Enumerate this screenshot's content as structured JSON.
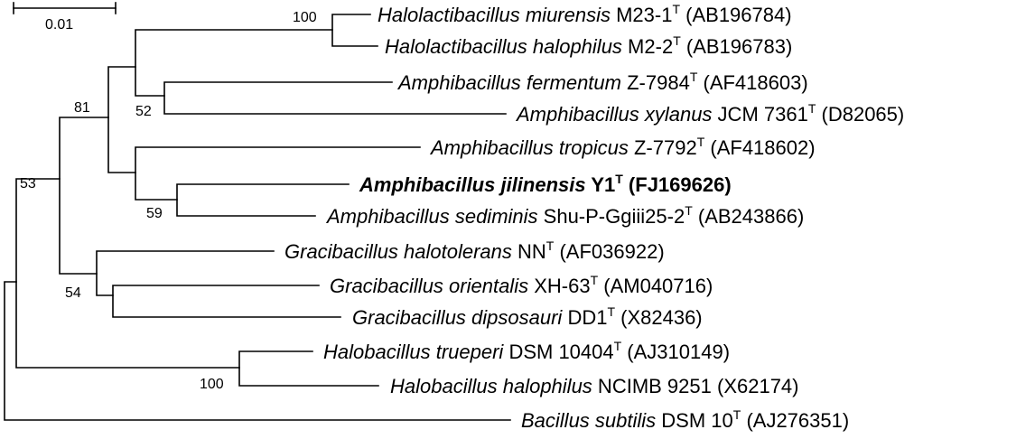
{
  "scale_bar": {
    "label": "0.01"
  },
  "taxa": [
    {
      "id": "t1",
      "genus_species": "Halolactibacillus miurensis",
      "strain": "M23-1",
      "type_strain": true,
      "accession": "(AB196784)",
      "bold": false
    },
    {
      "id": "t2",
      "genus_species": "Halolactibacillus halophilus",
      "strain": "M2-2",
      "type_strain": true,
      "accession": "(AB196783)",
      "bold": false
    },
    {
      "id": "t3",
      "genus_species": "Amphibacillus fermentum",
      "strain": "Z-7984",
      "type_strain": true,
      "accession": "(AF418603)",
      "bold": false
    },
    {
      "id": "t4",
      "genus_species": "Amphibacillus xylanus",
      "strain": "JCM 7361",
      "type_strain": true,
      "accession": "(D82065)",
      "bold": false
    },
    {
      "id": "t5",
      "genus_species": "Amphibacillus tropicus",
      "strain": "Z-7792",
      "type_strain": true,
      "accession": "(AF418602)",
      "bold": false
    },
    {
      "id": "t6",
      "genus_species": "Amphibacillus jilinensis",
      "strain": "Y1",
      "type_strain": true,
      "accession": "(FJ169626)",
      "bold": true
    },
    {
      "id": "t7",
      "genus_species": "Amphibacillus sediminis",
      "strain": "Shu-P-Ggiii25-2",
      "type_strain": true,
      "accession": "(AB243866)",
      "bold": false
    },
    {
      "id": "t8",
      "genus_species": "Gracibacillus halotolerans",
      "strain": "NN",
      "type_strain": true,
      "accession": "(AF036922)",
      "bold": false
    },
    {
      "id": "t9",
      "genus_species": "Gracibacillus orientalis",
      "strain": "XH-63",
      "type_strain": true,
      "accession": "(AM040716)",
      "bold": false
    },
    {
      "id": "t10",
      "genus_species": "Gracibacillus dipsosauri",
      "strain": "DD1",
      "type_strain": true,
      "accession": "(X82436)",
      "bold": false
    },
    {
      "id": "t11",
      "genus_species": "Halobacillus trueperi",
      "strain": "DSM 10404",
      "type_strain": true,
      "accession": "(AJ310149)",
      "bold": false
    },
    {
      "id": "t12",
      "genus_species": "Halobacillus halophilus",
      "strain": "NCIMB 9251",
      "type_strain": false,
      "accession": "(X62174)",
      "bold": false
    },
    {
      "id": "t13",
      "genus_species": "Bacillus subtilis",
      "strain": "DSM 10",
      "type_strain": true,
      "accession": "(AJ276351)",
      "bold": false
    }
  ],
  "type_superscript": "T",
  "bootstrap": {
    "halolactibacillus": "100",
    "fermentum_xylanus": "52",
    "amphibacillus_group": "81",
    "jilinensis_sediminis": "59",
    "gracibacillus": "54",
    "ingroup": "53",
    "halobacillus": "100"
  }
}
